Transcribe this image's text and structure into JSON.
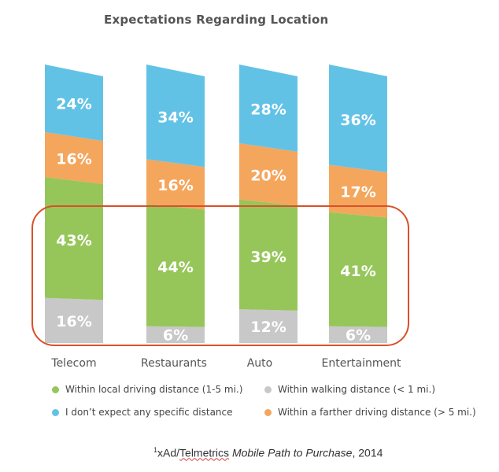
{
  "chart_data": {
    "type": "bar",
    "stacked": true,
    "title": "Expectations Regarding Location",
    "categories": [
      "Telecom",
      "Restaurants",
      "Auto",
      "Entertainment"
    ],
    "series": [
      {
        "name": "Within walking distance (< 1 mi.)",
        "color": "#c8c8c8",
        "values": [
          16,
          6,
          12,
          6
        ],
        "labels": [
          "16%",
          "6%",
          "12%",
          "6%"
        ]
      },
      {
        "name": "Within local driving distance (1-5 mi.)",
        "color": "#96c65a",
        "values": [
          43,
          44,
          39,
          41
        ],
        "labels": [
          "43%",
          "44%",
          "39%",
          "41%"
        ]
      },
      {
        "name": "Within a farther driving distance (> 5 mi.)",
        "color": "#f4a65c",
        "values": [
          16,
          16,
          20,
          17
        ],
        "labels": [
          "16%",
          "16%",
          "20%",
          "17%"
        ]
      },
      {
        "name": "I don’t expect any specific distance",
        "color": "#62c2e6",
        "values": [
          24,
          34,
          28,
          36
        ],
        "labels": [
          "24%",
          "34%",
          "28%",
          "36%"
        ]
      }
    ],
    "highlight": {
      "series": [
        "Within walking distance (< 1 mi.)",
        "Within local driving distance (1-5 mi.)"
      ],
      "color": "#d9502a"
    },
    "legend_position": "bottom",
    "grid": false
  },
  "legend": [
    {
      "label": "Within local driving distance (1-5 mi.)",
      "color": "#96c65a"
    },
    {
      "label": "Within walking distance (< 1 mi.)",
      "color": "#c8c8c8"
    },
    {
      "label": "I don’t expect any specific distance",
      "color": "#62c2e6"
    },
    {
      "label": "Within a farther driving distance (> 5 mi.)",
      "color": "#f4a65c"
    }
  ],
  "source": {
    "superscript": "1",
    "org_prefix": "xAd/",
    "org_name": "Telmetrics",
    "publication": "Mobile Path to Purchase",
    "year": ", 2014"
  }
}
